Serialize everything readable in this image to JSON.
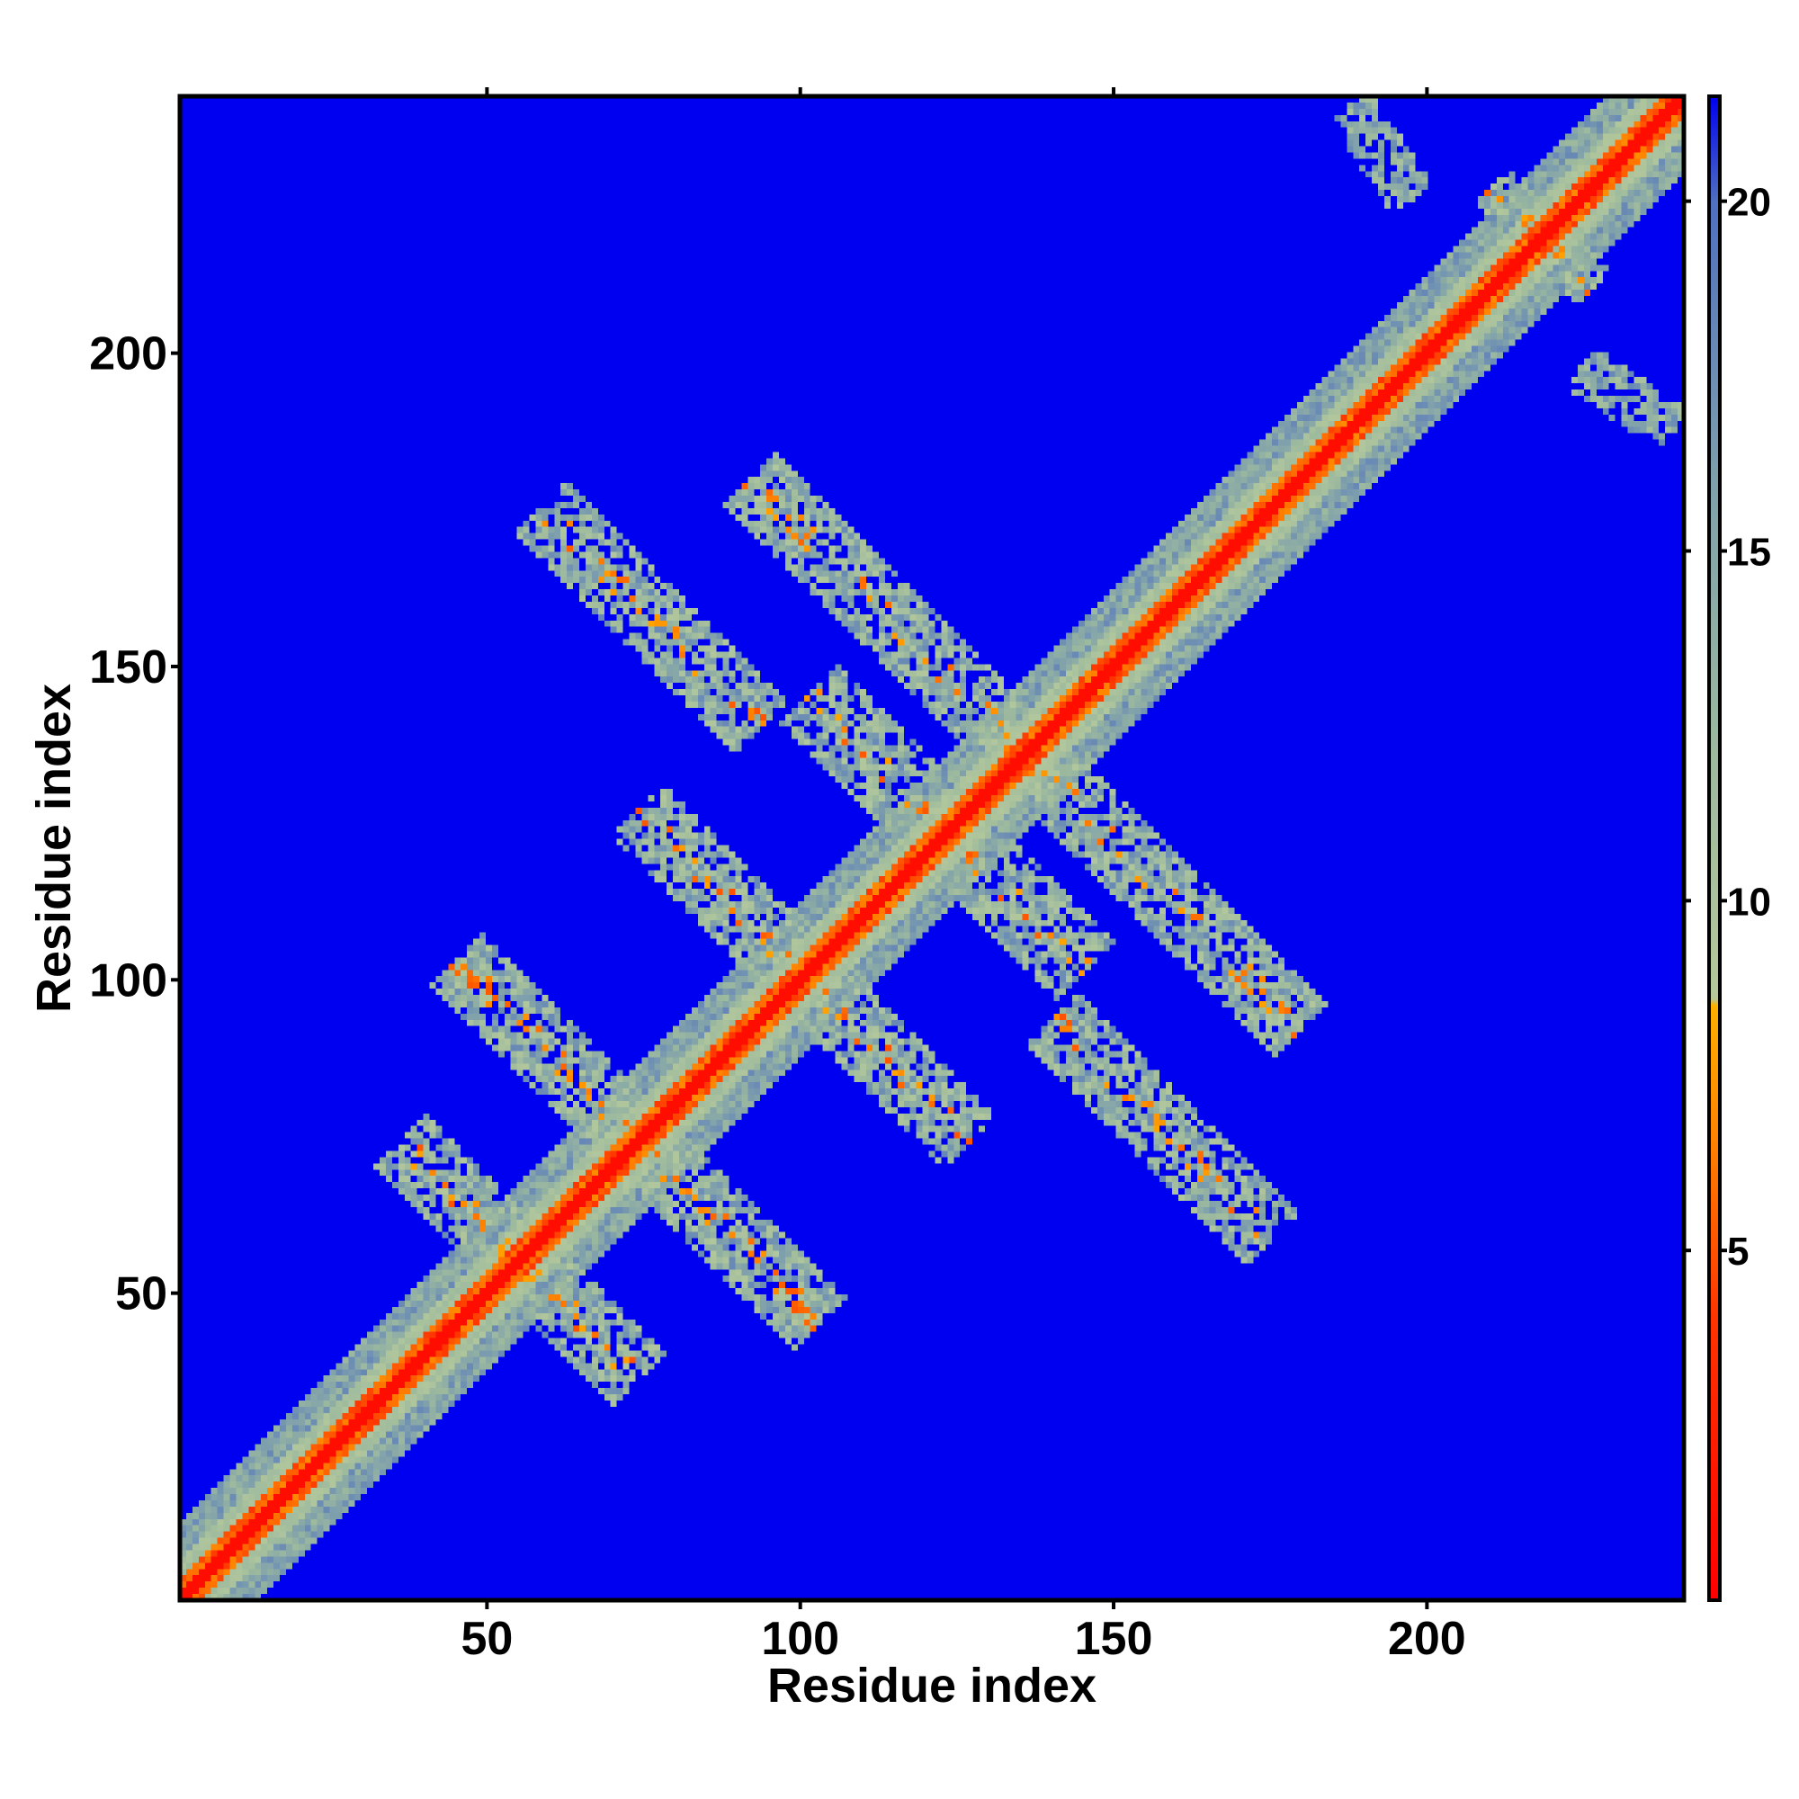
{
  "chart_data": {
    "type": "heatmap",
    "title": "",
    "xlabel": "Residue index",
    "ylabel": "Residue index",
    "xlim": [
      1,
      241
    ],
    "ylim": [
      1,
      241
    ],
    "x_ticks": [
      50,
      100,
      150,
      200
    ],
    "y_ticks": [
      50,
      100,
      150,
      200
    ],
    "grid": false,
    "colorbar": {
      "range": [
        0,
        21.5
      ],
      "ticks": [
        5,
        10,
        15,
        20
      ],
      "colors": [
        {
          "value": 0,
          "color": "#ff0000"
        },
        {
          "value": 4,
          "color": "#ff3300"
        },
        {
          "value": 6.5,
          "color": "#ff8000"
        },
        {
          "value": 8.5,
          "color": "#ffb000"
        },
        {
          "value": 8.6,
          "color": "#b4c89c"
        },
        {
          "value": 12,
          "color": "#9dba9e"
        },
        {
          "value": 16,
          "color": "#7fa0ac"
        },
        {
          "value": 20,
          "color": "#4f6fc0"
        },
        {
          "value": 21.5,
          "color": "#0000f0"
        }
      ]
    },
    "background_value": 21.5,
    "features": [
      {
        "kind": "diagonal",
        "description": "self-contact band",
        "core_value": 0,
        "half_width": 12
      },
      {
        "kind": "antidiagonal",
        "center": [
          55,
          55
        ],
        "length": 55,
        "half_width": 6
      },
      {
        "kind": "antidiagonal",
        "center": [
          89,
          59
        ],
        "length": 40,
        "half_width": 6
      },
      {
        "kind": "antidiagonal",
        "center": [
          114,
          87
        ],
        "length": 38,
        "half_width": 6
      },
      {
        "kind": "antidiagonal",
        "center": [
          99,
          168
        ],
        "length": 55,
        "half_width": 7
      },
      {
        "kind": "antidiagonal",
        "center": [
          159,
          113
        ],
        "length": 60,
        "half_width": 6
      },
      {
        "kind": "antidiagonal",
        "center": [
          131,
          116
        ],
        "length": 42,
        "half_width": 7
      },
      {
        "kind": "antidiagonal",
        "center": [
          132,
          155
        ],
        "length": 42,
        "half_width": 6
      },
      {
        "kind": "antidiagonal",
        "center": [
          158,
          76
        ],
        "length": 50,
        "half_width": 6
      },
      {
        "kind": "antidiagonal",
        "center": [
          220,
          218
        ],
        "length": 20,
        "half_width": 4
      },
      {
        "kind": "diagonal_offset",
        "start": [
          190,
          236
        ],
        "end": [
          205,
          224
        ],
        "half_width": 4
      },
      {
        "kind": "diagonal_offset",
        "start": [
          225,
          198
        ],
        "end": [
          240,
          188
        ],
        "half_width": 4
      }
    ]
  }
}
